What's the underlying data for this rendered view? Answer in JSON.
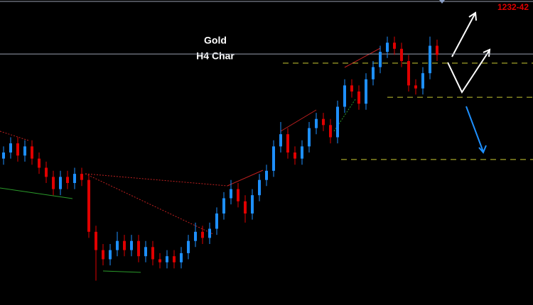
{
  "chart_data": {
    "type": "candlestick",
    "title": "Gold",
    "subtitle": "H4 Char",
    "annotation": "1232-42",
    "ylim": [
      0,
      100
    ],
    "open": [
      48,
      50,
      53,
      49,
      52,
      48,
      45,
      42,
      38,
      42,
      40,
      43,
      41,
      24,
      18,
      15,
      18,
      21,
      18,
      21,
      16,
      19,
      15,
      14,
      16,
      14,
      17,
      21,
      24,
      22,
      25,
      30,
      35,
      38,
      34,
      30,
      36,
      41,
      44,
      52,
      56,
      50,
      48,
      52,
      58,
      61,
      59,
      55,
      65,
      72,
      70,
      66,
      74,
      78,
      83,
      86,
      84,
      80,
      72,
      71,
      76,
      85
    ],
    "high": [
      52,
      55,
      55,
      54,
      54,
      50,
      47,
      44,
      44,
      44,
      45,
      45,
      43,
      26,
      20,
      20,
      24,
      23,
      23,
      23,
      21,
      21,
      17,
      18,
      18,
      19,
      23,
      27,
      26,
      27,
      32,
      37,
      41,
      40,
      36,
      38,
      43,
      46,
      54,
      60,
      58,
      52,
      54,
      60,
      63,
      63,
      61,
      67,
      74,
      74,
      72,
      76,
      80,
      85,
      88,
      88,
      86,
      82,
      74,
      78,
      88,
      87
    ],
    "low": [
      46,
      48,
      47,
      47,
      46,
      43,
      40,
      36,
      36,
      38,
      38,
      39,
      22,
      8,
      13,
      13,
      16,
      16,
      16,
      14,
      14,
      13,
      12,
      12,
      12,
      12,
      15,
      19,
      20,
      20,
      23,
      28,
      33,
      32,
      27,
      28,
      34,
      39,
      42,
      50,
      48,
      46,
      46,
      50,
      56,
      57,
      53,
      53,
      63,
      68,
      64,
      64,
      72,
      76,
      81,
      82,
      78,
      70,
      69,
      69,
      74,
      80
    ],
    "close": [
      50,
      53,
      49,
      52,
      48,
      45,
      42,
      38,
      42,
      40,
      43,
      41,
      24,
      18,
      15,
      18,
      21,
      18,
      21,
      16,
      19,
      15,
      14,
      16,
      14,
      17,
      21,
      24,
      22,
      25,
      30,
      35,
      38,
      34,
      30,
      36,
      41,
      44,
      52,
      56,
      50,
      48,
      52,
      58,
      61,
      59,
      55,
      65,
      72,
      70,
      66,
      74,
      78,
      83,
      86,
      84,
      80,
      72,
      71,
      76,
      85,
      82
    ],
    "up_color": "#1e90ff",
    "down_color": "#e00000",
    "levels": [
      79.3,
      68.1,
      47.7
    ],
    "level_color": "#c8c832",
    "price_line": 82.3
  }
}
